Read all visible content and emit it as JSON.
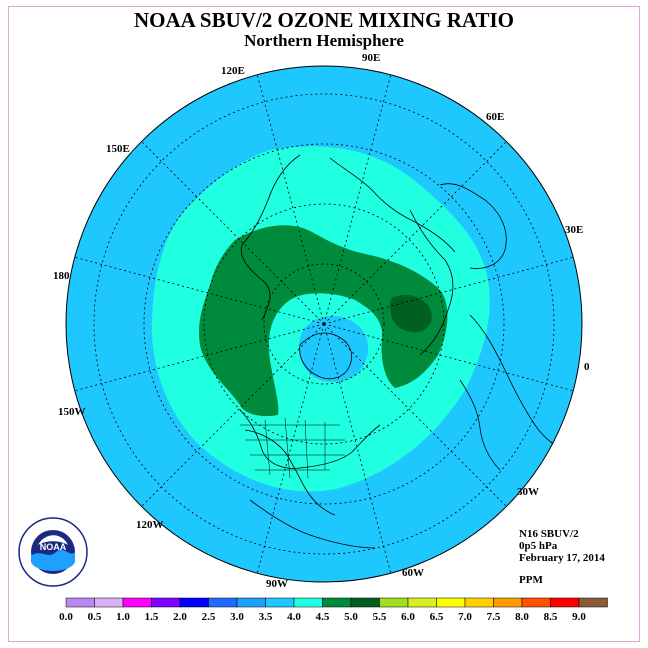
{
  "title": "NOAA SBUV/2 OZONE MIXING RATIO",
  "subtitle": "Northern Hemisphere",
  "info": {
    "instrument": "N16 SBUV/2",
    "level": "0p5 hPa",
    "date": "February 17, 2014",
    "units": "PPM"
  },
  "logo": {
    "text": "NOAA",
    "ring_text": "NATIONAL OCEANIC AND ATMOSPHERIC ADMINISTRATION · U.S. DEPARTMENT OF COMMERCE"
  },
  "longitude_labels": [
    "90E",
    "60E",
    "30E",
    "0",
    "30W",
    "60W",
    "90W",
    "120W",
    "150W",
    "180",
    "150E",
    "120E"
  ],
  "colorbar": {
    "labels": [
      "0.0",
      "0.5",
      "1.0",
      "1.5",
      "2.0",
      "2.5",
      "3.0",
      "3.5",
      "4.0",
      "4.5",
      "5.0",
      "5.5",
      "6.0",
      "6.5",
      "7.0",
      "7.5",
      "8.0",
      "8.5",
      "9.0"
    ],
    "colors": [
      "#b88af0",
      "#d8b0f8",
      "#ff00ff",
      "#8000ff",
      "#0000ff",
      "#1e6cff",
      "#1ea0ff",
      "#1ec8ff",
      "#20ffe0",
      "#008a3c",
      "#006020",
      "#a0e020",
      "#d8f020",
      "#ffff00",
      "#ffd000",
      "#ff9a00",
      "#ff5000",
      "#ff0000",
      "#8b5a3a"
    ]
  },
  "map_colors": {
    "range_3_0_3_5": "#1ec8ff",
    "range_3_5_4_0": "#20ffe0",
    "range_4_0_4_5": "#008a3c",
    "range_4_5_5_0": "#006020"
  }
}
